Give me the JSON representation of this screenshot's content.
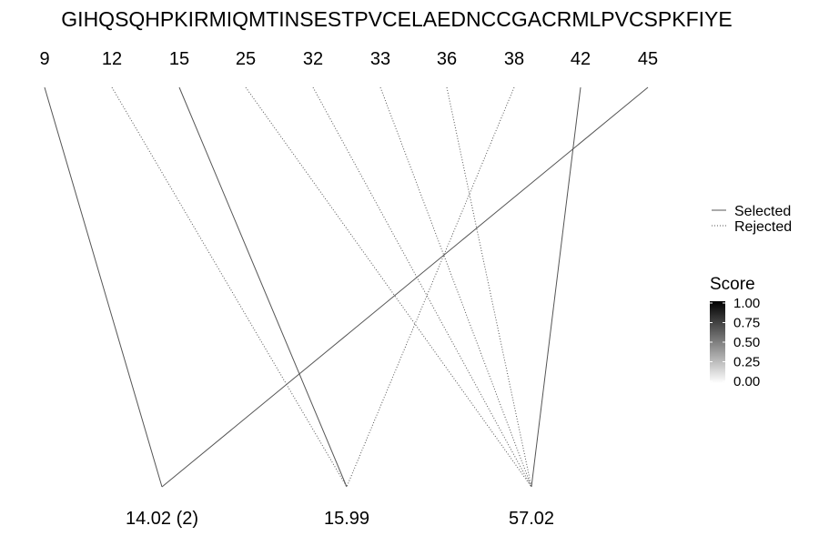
{
  "sequence": "GIHQSQHPKIRMIQMTINSESTPVCELAEDNCCGACRMLPVCSPKFIYE",
  "positions": [
    "9",
    "12",
    "15",
    "25",
    "32",
    "33",
    "36",
    "38",
    "42",
    "45"
  ],
  "masses": [
    "14.02 (2)",
    "15.99",
    "57.02"
  ],
  "links": [
    {
      "from": "9",
      "to": "14.02 (2)",
      "status": "Selected"
    },
    {
      "from": "45",
      "to": "14.02 (2)",
      "status": "Selected"
    },
    {
      "from": "15",
      "to": "15.99",
      "status": "Selected"
    },
    {
      "from": "12",
      "to": "15.99",
      "status": "Rejected"
    },
    {
      "from": "38",
      "to": "15.99",
      "status": "Rejected"
    },
    {
      "from": "42",
      "to": "57.02",
      "status": "Selected"
    },
    {
      "from": "25",
      "to": "57.02",
      "status": "Rejected"
    },
    {
      "from": "32",
      "to": "57.02",
      "status": "Rejected"
    },
    {
      "from": "33",
      "to": "57.02",
      "status": "Rejected"
    },
    {
      "from": "36",
      "to": "57.02",
      "status": "Rejected"
    }
  ],
  "legend": {
    "selected_label": "Selected",
    "rejected_label": "Rejected"
  },
  "score_scale": {
    "title": "Score",
    "ticks": [
      "1.00",
      "0.75",
      "0.50",
      "0.25",
      "0.00"
    ],
    "color_high": "#000000",
    "color_low": "#ffffff"
  },
  "colors": {
    "selected_line": "#555555",
    "rejected_line": "#555555"
  }
}
